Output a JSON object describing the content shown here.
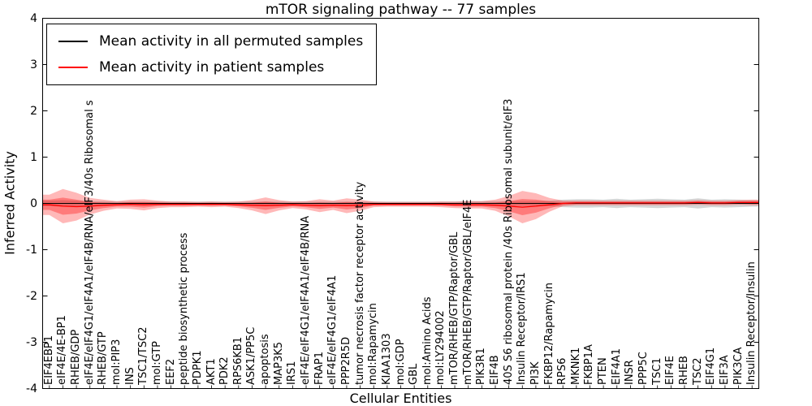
{
  "chart_data": {
    "type": "line",
    "title": "mTOR signaling pathway -- 77 samples",
    "samples": 77,
    "xlabel": "Cellular Entities",
    "ylabel": "Inferred Activity",
    "ylim": [
      -4,
      4
    ],
    "yticks": [
      4,
      3,
      2,
      1,
      0,
      -1,
      -2,
      -3,
      -4
    ],
    "grid": false,
    "legend_position": "upper left",
    "colors": {
      "permuted_line": "#000000",
      "patient_line": "#ff0000",
      "patient_band": "#ff0000",
      "permuted_band": "#888888",
      "axes": "#000000",
      "background": "#ffffff"
    },
    "categories": [
      "EIF4EBP1",
      "eIF4E/4E-BP1",
      "RHEB/GDP",
      "eIF4E/eIF4G1/eIF4A1/eIF4B/RNA/eIF3/40s Ribosomal s",
      "RHEB/GTP",
      "mol:PIP3",
      "INS",
      "TSC1/TSC2",
      "mol:GTP",
      "EEF2",
      "peptide biosynthetic process",
      "PDPK1",
      "AKT1",
      "PDK2",
      "RPS6KB1",
      "ASK1/PP5C",
      "apoptosis",
      "MAP3K5",
      "IRS1",
      "eIF4E/eIF4G1/eIF4A1/eIF4B/RNA",
      "FRAP1",
      "eIF4E/eIF4G1/eIF4A1",
      "PPP2R5D",
      "tumor necrosis factor receptor activity",
      "mol:Rapamycin",
      "KIAA1303",
      "mol:GDP",
      "GBL",
      "mol:Amino Acids",
      "mol:LY294002",
      "mTOR/RHEB/GTP/Raptor/GBL",
      "mTOR/RHEB/GTP/Raptor/GBL/eIF4E",
      "PIK3R1",
      "EIF4B",
      "40S S6 ribosomal protein /40s Ribosomal subunit/eIF3",
      "Insulin Receptor/IRS1",
      "PI3K",
      "FKBP12/Rapamycin",
      "RPS6",
      "MKNK1",
      "FKBP1A",
      "PTEN",
      "EIF4A1",
      "INSR",
      "PPP5C",
      "TSC1",
      "EIF4E",
      "RHEB",
      "TSC2",
      "EIF4G1",
      "EIF3A",
      "PIK3CA",
      "Insulin Receptor/Insulin"
    ],
    "series": [
      {
        "name": "Mean activity in all permuted samples",
        "color": "#000000",
        "values": [
          0,
          0,
          0,
          0,
          0,
          0,
          0,
          0,
          0,
          0,
          0,
          0,
          0,
          0,
          0,
          0,
          0,
          0,
          0,
          0,
          0,
          0,
          0,
          0,
          0,
          0,
          0,
          0,
          0,
          0,
          0,
          0,
          0,
          0,
          0,
          0,
          0,
          0,
          0,
          0,
          0,
          0,
          0,
          0,
          0,
          0,
          0,
          0,
          0,
          0,
          0,
          0,
          0
        ],
        "band": [
          0.06,
          0.07,
          0.06,
          0.05,
          0.05,
          0.04,
          0.04,
          0.04,
          0.04,
          0.04,
          0.04,
          0.04,
          0.04,
          0.04,
          0.04,
          0.04,
          0.04,
          0.04,
          0.04,
          0.04,
          0.04,
          0.04,
          0.04,
          0.04,
          0.04,
          0.04,
          0.04,
          0.04,
          0.04,
          0.04,
          0.04,
          0.05,
          0.05,
          0.05,
          0.05,
          0.05,
          0.05,
          0.06,
          0.08,
          0.09,
          0.09,
          0.08,
          0.1,
          0.08,
          0.09,
          0.1,
          0.09,
          0.08,
          0.11,
          0.08,
          0.09,
          0.08,
          0.07
        ]
      },
      {
        "name": "Mean activity in patient samples",
        "color": "#ff0000",
        "values": [
          -0.03,
          -0.06,
          -0.07,
          -0.06,
          -0.04,
          -0.03,
          -0.02,
          -0.03,
          -0.02,
          -0.02,
          -0.02,
          -0.02,
          -0.02,
          -0.02,
          -0.03,
          -0.04,
          -0.05,
          -0.04,
          -0.03,
          -0.04,
          -0.05,
          -0.04,
          -0.05,
          -0.04,
          -0.02,
          -0.02,
          -0.02,
          -0.02,
          -0.02,
          -0.02,
          -0.03,
          -0.03,
          -0.03,
          -0.04,
          -0.06,
          -0.08,
          -0.06,
          -0.03,
          0.0,
          0.01,
          0.01,
          0.01,
          0.01,
          0.01,
          0.01,
          0.01,
          0.01,
          0.01,
          0.02,
          0.01,
          0.01,
          0.02,
          0.02
        ],
        "band": [
          0.22,
          0.37,
          0.3,
          0.18,
          0.12,
          0.08,
          0.1,
          0.12,
          0.08,
          0.06,
          0.06,
          0.05,
          0.06,
          0.05,
          0.07,
          0.11,
          0.18,
          0.11,
          0.07,
          0.09,
          0.14,
          0.1,
          0.16,
          0.12,
          0.06,
          0.05,
          0.05,
          0.05,
          0.05,
          0.06,
          0.07,
          0.08,
          0.08,
          0.12,
          0.22,
          0.35,
          0.28,
          0.15,
          0.06,
          0.05,
          0.05,
          0.05,
          0.05,
          0.05,
          0.05,
          0.05,
          0.05,
          0.05,
          0.05,
          0.05,
          0.05,
          0.05,
          0.06
        ]
      }
    ]
  }
}
